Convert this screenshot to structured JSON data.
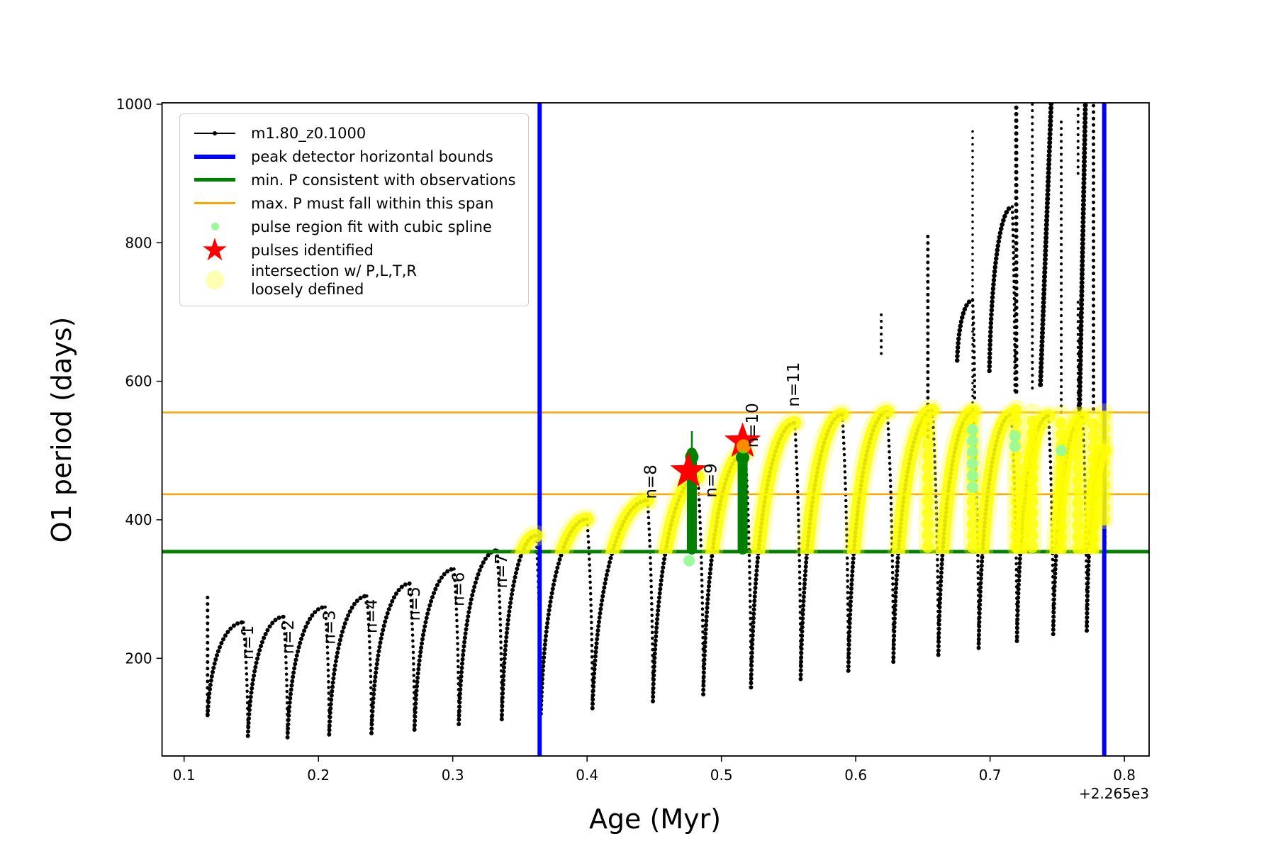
{
  "colors": {
    "series": "#000000",
    "peak_bounds": "#0000ff",
    "min_p": "#008000",
    "max_p": "#ffa500",
    "pulse_fit": "#98fb98",
    "pulse_star": "#ff0000",
    "intersection": "#ffff00"
  },
  "legend": {
    "items": [
      {
        "label": "m1.80_z0.1000"
      },
      {
        "label": "peak detector horizontal bounds"
      },
      {
        "label": "min. P consistent with observations"
      },
      {
        "label": "max. P must fall within this span"
      },
      {
        "label": "pulse region fit with cubic spline"
      },
      {
        "label": "pulses identified"
      },
      {
        "label": "intersection w/ P,L,T,R",
        "label2": "loosely defined"
      }
    ]
  },
  "chart_data": {
    "type": "scatter",
    "title": "",
    "xlabel": "Age (Myr)",
    "ylabel": "O1 period (days)",
    "x_offset_text": "+2.265e3",
    "grid": false,
    "legend_position": "upper left",
    "xlim": [
      0.0836,
      0.8184
    ],
    "ylim": [
      59,
      1002
    ],
    "xticks": [
      0.1,
      0.2,
      0.3,
      0.4,
      0.5,
      0.6,
      0.7,
      0.8
    ],
    "yticks": [
      200,
      400,
      600,
      800,
      1000
    ],
    "series_label": "m1.80_z0.1000",
    "hlines": [
      {
        "p": 354,
        "color_key": "min_p",
        "w": 5,
        "meaning": "min. P consistent with observations"
      },
      {
        "p": 555,
        "color_key": "max_p",
        "w": 2.5,
        "meaning": "max. P upper bound"
      },
      {
        "p": 437,
        "color_key": "max_p",
        "w": 2.5,
        "meaning": "max. P lower bound"
      }
    ],
    "vlines": [
      {
        "x": 0.3647,
        "color_key": "peak_bounds",
        "w": 6
      },
      {
        "x": 0.785,
        "color_key": "peak_bounds",
        "w": 6
      }
    ],
    "cycles": [
      [
        0.1175,
        118,
        0.144,
        252,
        0.1475,
        88,
        "n=1",
        198,
        14,
        0
      ],
      [
        0.1475,
        88,
        0.174,
        260,
        0.177,
        86,
        "n=2",
        206,
        14,
        0
      ],
      [
        0.177,
        86,
        0.205,
        274,
        0.208,
        90,
        "n=3",
        220,
        14,
        0
      ],
      [
        0.208,
        90,
        0.236,
        290,
        0.2395,
        92,
        "n=4",
        236,
        14,
        0
      ],
      [
        0.2395,
        92,
        0.268,
        308,
        0.2715,
        97,
        "n=5",
        254,
        14,
        0
      ],
      [
        0.2715,
        97,
        0.301,
        329,
        0.3045,
        105,
        "n=6",
        275,
        14,
        0
      ],
      [
        0.3045,
        105,
        0.333,
        356,
        0.3365,
        112,
        "n=7",
        301,
        14,
        0
      ],
      [
        0.3365,
        112,
        0.362,
        377,
        0.3655,
        120,
        null,
        0,
        0,
        1
      ],
      [
        0.3655,
        120,
        0.4,
        401,
        0.404,
        128,
        null,
        0,
        0,
        1
      ],
      [
        0.404,
        128,
        0.445,
        428,
        0.449,
        138,
        "n=8",
        430,
        12,
        1
      ],
      [
        0.449,
        138,
        0.4825,
        462,
        0.4865,
        148,
        "n=9",
        432,
        26,
        1
      ],
      [
        0.4865,
        148,
        0.5177,
        498,
        0.522,
        158,
        "n=10",
        504,
        18,
        1
      ],
      [
        0.522,
        158,
        0.5546,
        540,
        0.559,
        170,
        "n=11",
        563,
        6,
        1
      ],
      [
        0.559,
        170,
        0.59,
        552,
        0.5945,
        182,
        null,
        0,
        0,
        1
      ],
      [
        0.5945,
        182,
        0.6235,
        556,
        0.628,
        195,
        null,
        0,
        0,
        1
      ],
      [
        0.628,
        195,
        0.657,
        558,
        0.6615,
        205,
        null,
        0,
        0,
        1
      ],
      [
        0.6615,
        205,
        0.6875,
        556,
        0.6915,
        215,
        null,
        0,
        0,
        1
      ],
      [
        0.6915,
        215,
        0.716,
        552,
        0.72,
        225,
        null,
        0,
        0,
        1
      ],
      [
        0.72,
        225,
        0.7435,
        550,
        0.747,
        235,
        null,
        0,
        0,
        1
      ],
      [
        0.747,
        235,
        0.769,
        548,
        0.772,
        240,
        null,
        0,
        0,
        1
      ],
      [
        0.772,
        240,
        0.785,
        500,
        0.7855,
        365,
        null,
        0,
        0,
        1
      ]
    ],
    "spikes": [
      [
        0.1175,
        120,
        290,
        5
      ],
      [
        0.619,
        640,
        700,
        4
      ],
      [
        0.6537,
        520,
        812,
        5
      ],
      [
        0.687,
        560,
        965,
        3.5
      ],
      [
        0.7195,
        585,
        1002,
        6
      ],
      [
        0.7315,
        590,
        1002,
        4
      ],
      [
        0.753,
        555,
        975,
        4
      ],
      [
        0.7655,
        900,
        1002,
        4
      ],
      [
        0.7655,
        565,
        715,
        4
      ],
      [
        0.777,
        560,
        1002,
        5
      ],
      [
        0.785,
        360,
        555,
        4
      ]
    ],
    "high_arcs": [
      [
        0.6755,
        630,
        0.687,
        717,
        0.6885,
        570
      ],
      [
        0.6995,
        615,
        0.7165,
        852,
        0.7185,
        585
      ]
    ],
    "risers": [
      [
        0.7375,
        595,
        0.7455,
        1002,
        7
      ],
      [
        0.7665,
        555,
        0.771,
        1002,
        7
      ]
    ],
    "yellow_region": {
      "min_p": 355,
      "columns": [
        [
          0.6537,
          360,
          552
        ],
        [
          0.687,
          360,
          556
        ],
        [
          0.7195,
          360,
          560
        ],
        [
          0.7315,
          360,
          555
        ],
        [
          0.753,
          358,
          552
        ],
        [
          0.7655,
          358,
          550
        ],
        [
          0.777,
          356,
          550
        ],
        [
          0.785,
          400,
          555
        ]
      ]
    },
    "palegreen_dots": [
      [
        0.476,
        341
      ],
      [
        0.687,
        447
      ],
      [
        0.687,
        464
      ],
      [
        0.687,
        481
      ],
      [
        0.687,
        498
      ],
      [
        0.687,
        514
      ],
      [
        0.687,
        530
      ],
      [
        0.7185,
        506
      ],
      [
        0.7185,
        521
      ],
      [
        0.753,
        500
      ]
    ],
    "green_bars": [
      [
        0.478,
        357,
        497,
        528
      ],
      [
        0.5158,
        357,
        496,
        0
      ]
    ],
    "stars": [
      [
        0.4755,
        470
      ],
      [
        0.5158,
        513
      ]
    ],
    "star_accent": {
      "x": 0.5165,
      "p": 506,
      "r": 10
    }
  }
}
